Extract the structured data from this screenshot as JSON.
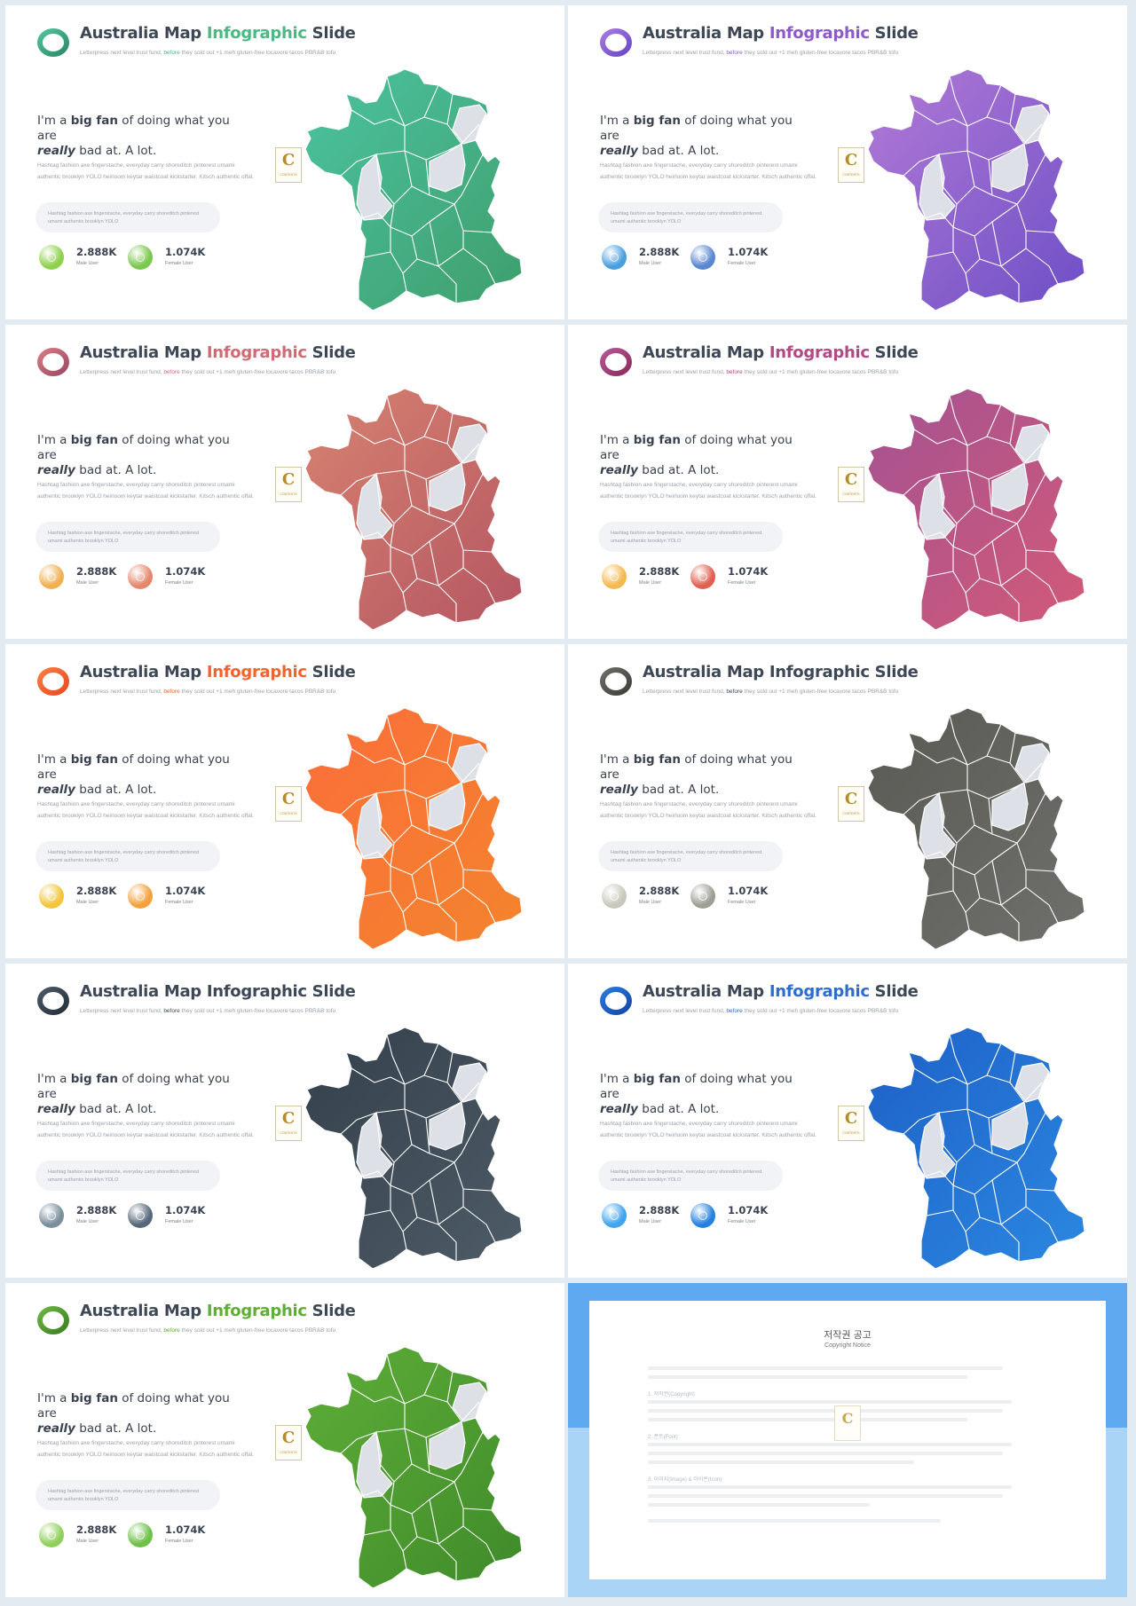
{
  "slide_common": {
    "title_part1": "Australia Map ",
    "title_accent": "Infographic",
    "title_part2": " Slide",
    "subtitle_part1": "Letterpress next level trust fund, ",
    "subtitle_highlight": "before",
    "subtitle_part2": " they sold out +1 meh gluten-free locavore tacos PBR&B tofu",
    "headline_line1_a": "I'm a ",
    "headline_bold": "big fan",
    "headline_line1_b": " of doing what you are",
    "headline_italic": "really",
    "headline_line2": " bad at. A lot.",
    "body_text": "Hashtag fashion axe fingerstache, everyday carry shoreditch pinterest umami authentic brooklyn YOLO heirloom keytar waistcoat kickstarter. Kitsch authentic offal.",
    "pill_text": "Hashtag fashion axe fingerstache, everyday carry shoreditch pinterest umami authentic brooklyn YOLO",
    "stat1_value": "2.888K",
    "stat1_label": "Male User",
    "stat2_value": "1.074K",
    "stat2_label": "Female User",
    "badge_letter": "C",
    "badge_label": "CONTENTS"
  },
  "slides": [
    {
      "id": "green-teal",
      "accent": "#4cb883",
      "map_from": "#4bc3a0",
      "map_to": "#3f9e6c",
      "ring_from": "#4ec39c",
      "ring_to": "#2f8a67",
      "stat1_color": "#8ed14b",
      "stat2_color": "#7ac84e"
    },
    {
      "id": "purple",
      "accent": "#8c5bc9",
      "map_from": "#b27ad6",
      "map_to": "#6d4fc6",
      "ring_from": "#a57ae0",
      "ring_to": "#6a48c4",
      "stat1_color": "#4a9fe0",
      "stat2_color": "#5b86d2"
    },
    {
      "id": "rose",
      "accent": "#d06a74",
      "map_from": "#d78270",
      "map_to": "#b45662",
      "ring_from": "#d57a80",
      "ring_to": "#9e4a66",
      "stat1_color": "#f0b050",
      "stat2_color": "#e5876a"
    },
    {
      "id": "magenta",
      "accent": "#b14a84",
      "map_from": "#a45292",
      "map_to": "#d25a78",
      "ring_from": "#b05896",
      "ring_to": "#8e2c5c",
      "stat1_color": "#f5b84c",
      "stat2_color": "#e06050"
    },
    {
      "id": "orange",
      "accent": "#f0652e",
      "map_from": "#fb6e3a",
      "map_to": "#f3842d",
      "ring_from": "#fb7a3e",
      "ring_to": "#e84c22",
      "stat1_color": "#f3c53c",
      "stat2_color": "#f3a23a"
    },
    {
      "id": "grey",
      "accent": "#3d4755",
      "map_from": "#5a5a55",
      "map_to": "#6f706b",
      "ring_from": "#6c6c66",
      "ring_to": "#3f3f3c",
      "stat1_color": "#c9c8bd",
      "stat2_color": "#9e9e96"
    },
    {
      "id": "slate",
      "accent": "#3d4755",
      "map_from": "#34404c",
      "map_to": "#4e5c68",
      "ring_from": "#4a5866",
      "ring_to": "#25303a",
      "stat1_color": "#7a8e9c",
      "stat2_color": "#56697a"
    },
    {
      "id": "blue",
      "accent": "#2f6cd0",
      "map_from": "#1e60c8",
      "map_to": "#2b88e0",
      "ring_from": "#2a78dc",
      "ring_to": "#1448a8",
      "stat1_color": "#40a4ee",
      "stat2_color": "#2580e0"
    },
    {
      "id": "lime",
      "accent": "#5fae35",
      "map_from": "#5eae38",
      "map_to": "#3f8a2a",
      "ring_from": "#6bb640",
      "ring_to": "#3d7f24",
      "stat1_color": "#8fd05a",
      "stat2_color": "#6ec049"
    }
  ],
  "copyright": {
    "title_ko": "저작권 공고",
    "title_en": "Copyright Notice",
    "section1": "1. 저작권(Copyright)",
    "section2": "2. 폰트(Font)",
    "section3": "3. 이미지(Image) & 아이콘(Icon)"
  }
}
